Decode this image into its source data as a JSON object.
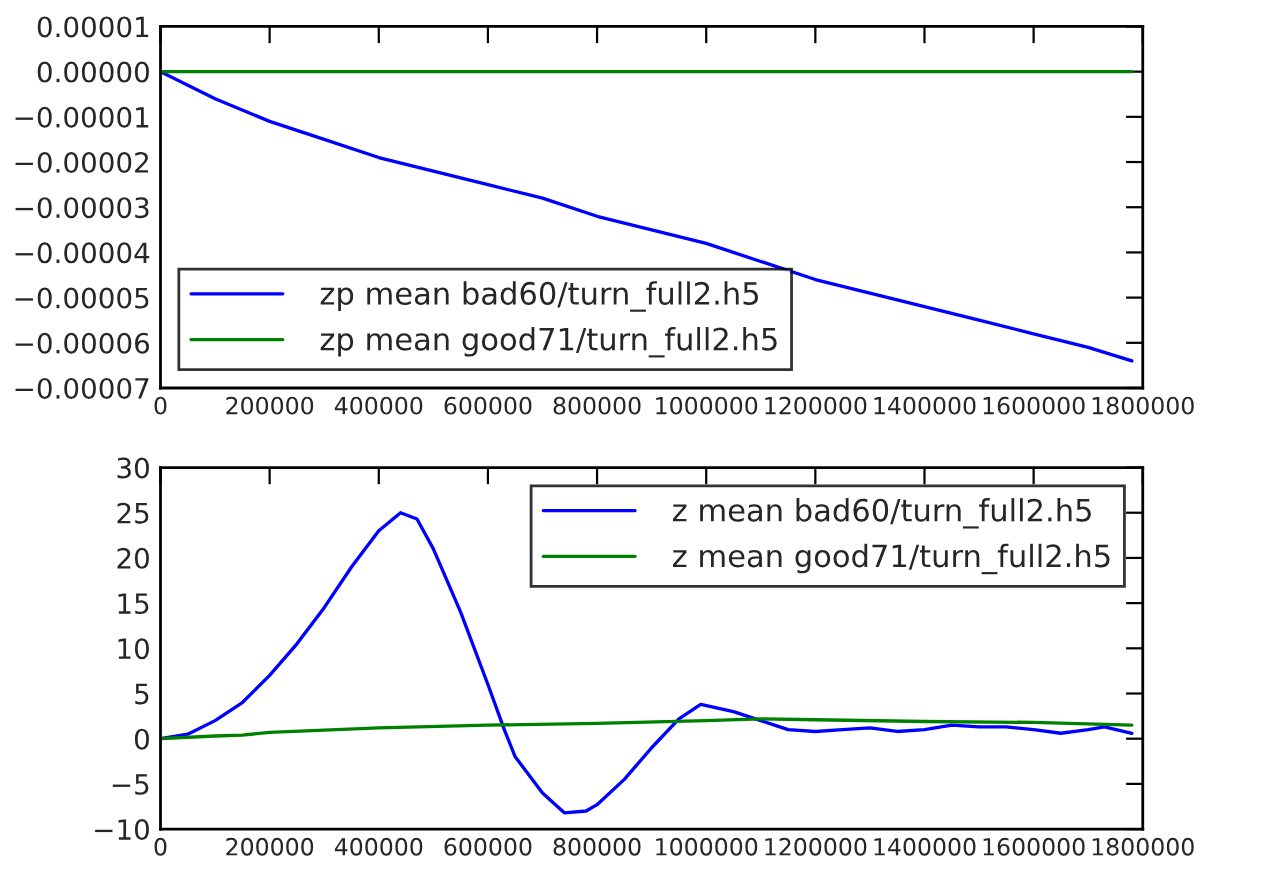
{
  "chart_data": [
    {
      "type": "line",
      "legend": "bottom left",
      "xlim": [
        0,
        1800000
      ],
      "xticks": [
        0,
        200000,
        400000,
        600000,
        800000,
        1000000,
        1200000,
        1400000,
        1600000,
        1800000
      ],
      "ylim": [
        -7e-05,
        1e-05
      ],
      "yticks": [
        {
          "value": -7e-05,
          "label": "−0.00007"
        },
        {
          "value": -6e-05,
          "label": "−0.00006"
        },
        {
          "value": -5e-05,
          "label": "−0.00005"
        },
        {
          "value": -4e-05,
          "label": "−0.00004"
        },
        {
          "value": -3e-05,
          "label": "−0.00003"
        },
        {
          "value": -2e-05,
          "label": "−0.00002"
        },
        {
          "value": -1e-05,
          "label": "−0.00001"
        },
        {
          "value": 0,
          "label": "0.00000"
        },
        {
          "value": 1e-05,
          "label": "0.00001"
        }
      ],
      "series": [
        {
          "name": "zp mean bad60/turn_full2.h5",
          "color": "#0000ff",
          "x": [
            0,
            100000,
            200000,
            300000,
            400000,
            500000,
            600000,
            700000,
            800000,
            900000,
            1000000,
            1100000,
            1200000,
            1300000,
            1400000,
            1500000,
            1600000,
            1700000,
            1780000
          ],
          "values": [
            0,
            -6e-06,
            -1.1e-05,
            -1.5e-05,
            -1.9e-05,
            -2.2e-05,
            -2.5e-05,
            -2.8e-05,
            -3.2e-05,
            -3.5e-05,
            -3.8e-05,
            -4.2e-05,
            -4.6e-05,
            -4.9e-05,
            -5.2e-05,
            -5.5e-05,
            -5.8e-05,
            -6.1e-05,
            -6.4e-05
          ]
        },
        {
          "name": "zp mean good71/turn_full2.h5",
          "color": "#008000",
          "x": [
            0,
            400000,
            800000,
            1200000,
            1600000,
            1780000
          ],
          "values": [
            0,
            0,
            0,
            0,
            0,
            0
          ]
        }
      ]
    },
    {
      "type": "line",
      "legend": "top right",
      "xlim": [
        0,
        1800000
      ],
      "xticks": [
        0,
        200000,
        400000,
        600000,
        800000,
        1000000,
        1200000,
        1400000,
        1600000,
        1800000
      ],
      "ylim": [
        -10,
        30
      ],
      "yticks": [
        {
          "value": -10,
          "label": "−10"
        },
        {
          "value": -5,
          "label": "−5"
        },
        0,
        5,
        10,
        15,
        20,
        25,
        30
      ],
      "series": [
        {
          "name": "z mean bad60/turn_full2.h5",
          "color": "#0000ff",
          "x": [
            0,
            50000,
            100000,
            150000,
            200000,
            250000,
            300000,
            350000,
            400000,
            440000,
            470000,
            500000,
            550000,
            600000,
            630000,
            650000,
            700000,
            740000,
            780000,
            800000,
            850000,
            900000,
            950000,
            990000,
            1050000,
            1100000,
            1150000,
            1200000,
            1250000,
            1300000,
            1350000,
            1400000,
            1450000,
            1500000,
            1550000,
            1600000,
            1650000,
            1700000,
            1730000,
            1780000
          ],
          "values": [
            0,
            0.5,
            2,
            4,
            7,
            10.5,
            14.5,
            19,
            23,
            25,
            24.3,
            21,
            14,
            6,
            1,
            -2,
            -6,
            -8.2,
            -8,
            -7.3,
            -4.5,
            -1,
            2.2,
            3.8,
            3,
            2,
            1,
            0.8,
            1,
            1.2,
            0.8,
            1,
            1.5,
            1.3,
            1.3,
            1,
            0.6,
            1,
            1.3,
            0.6
          ]
        },
        {
          "name": "z mean good71/turn_full2.h5",
          "color": "#008000",
          "x": [
            0,
            100000,
            150000,
            200000,
            400000,
            600000,
            800000,
            1000000,
            1100000,
            1200000,
            1400000,
            1600000,
            1780000
          ],
          "values": [
            0,
            0.3,
            0.4,
            0.7,
            1.2,
            1.5,
            1.7,
            2,
            2.2,
            2.1,
            1.9,
            1.8,
            1.5
          ]
        }
      ]
    }
  ]
}
